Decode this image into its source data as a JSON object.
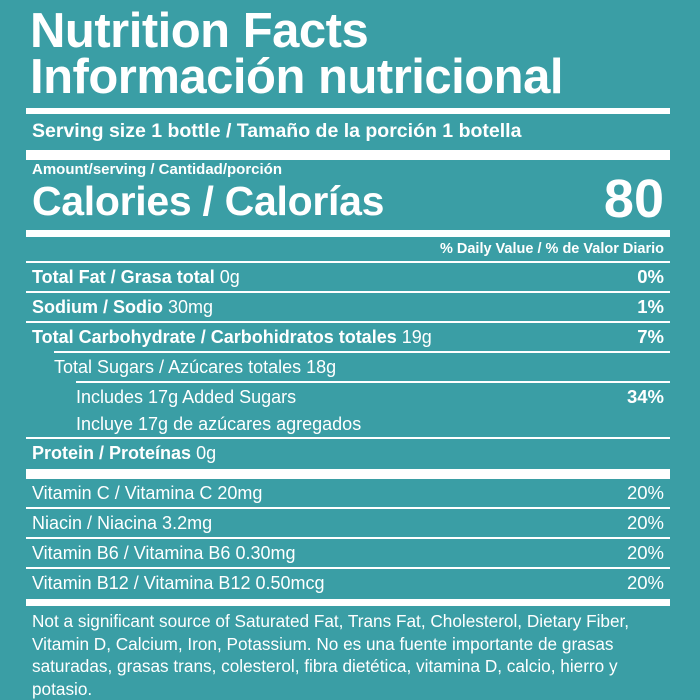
{
  "title_en": "Nutrition Facts",
  "title_es": "Información nutricional",
  "serving": "Serving size 1 bottle / Tamaño de la porción 1 botella",
  "amount_per_serving": "Amount/serving / Cantidad/porción",
  "calories_label": "Calories / Calorías",
  "calories_value": "80",
  "daily_value_header": "% Daily Value / % de Valor Diario",
  "nutrients": {
    "total_fat": {
      "label": "Total Fat / Grasa total",
      "amount": "0g",
      "dv": "0%"
    },
    "sodium": {
      "label": "Sodium / Sodio",
      "amount": "30mg",
      "dv": "1%"
    },
    "total_carb": {
      "label": "Total Carbohydrate / Carbohidratos totales",
      "amount": "19g",
      "dv": "7%"
    },
    "total_sugars": {
      "label": "Total Sugars / Azúcares totales 18g"
    },
    "added_sugars_en": {
      "label": "Includes 17g Added Sugars",
      "dv": "34%"
    },
    "added_sugars_es": {
      "label": "Incluye 17g de azúcares agregados"
    },
    "protein": {
      "label": "Protein / Proteínas",
      "amount": "0g"
    }
  },
  "vitamins": [
    {
      "label": "Vitamin C / Vitamina C 20mg",
      "dv": "20%"
    },
    {
      "label": "Niacin / Niacina 3.2mg",
      "dv": "20%"
    },
    {
      "label": "Vitamin B6 / Vitamina B6 0.30mg",
      "dv": "20%"
    },
    {
      "label": "Vitamin B12 / Vitamina B12 0.50mcg",
      "dv": "20%"
    }
  ],
  "footnote": "Not a significant source of Saturated Fat, Trans Fat, Cholesterol, Dietary Fiber, Vitamin D, Calcium, Iron, Potassium. No es una fuente importante de grasas saturadas, grasas trans, colesterol, fibra dietética, vitamina D, calcio, hierro y potasio.",
  "colors": {
    "background": "#3a9ea5",
    "foreground": "#ffffff"
  }
}
